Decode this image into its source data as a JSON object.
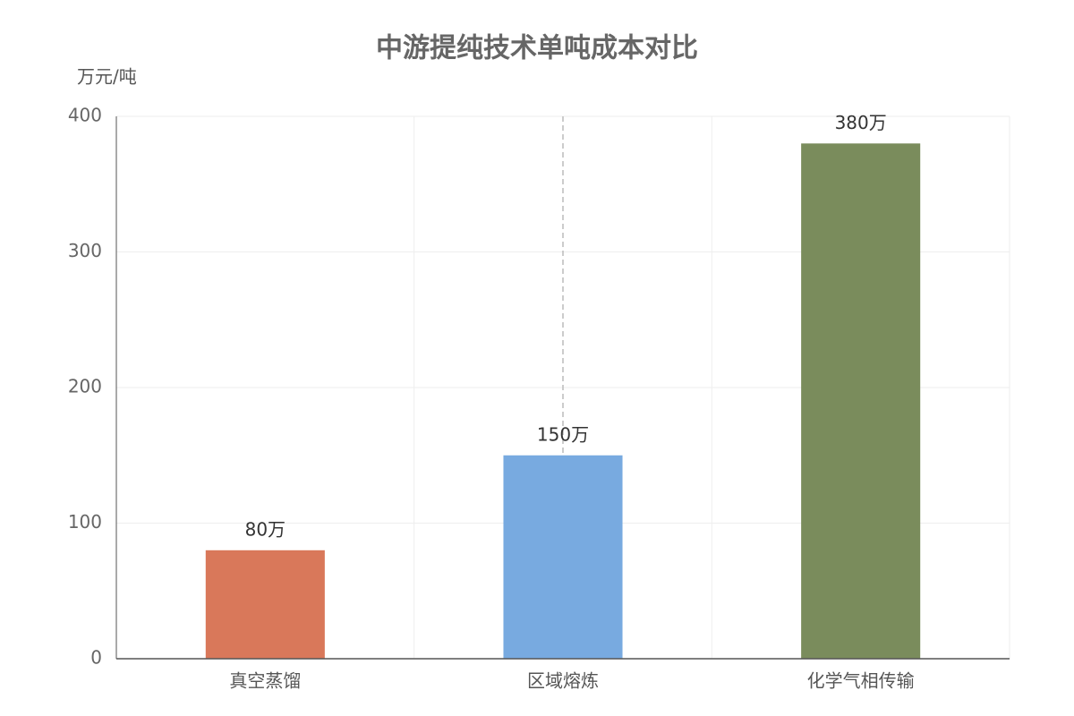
{
  "chart_data": {
    "type": "bar",
    "title": "中游提纯技术单吨成本对比",
    "y_label": "万元/吨",
    "categories": [
      "真空蒸馏",
      "区域熔炼",
      "化学气相传输"
    ],
    "values": [
      80,
      150,
      380
    ],
    "value_labels": [
      "80万",
      "150万",
      "380万"
    ],
    "colors": [
      "#d9785a",
      "#78aae0",
      "#7a8c5c"
    ],
    "ylim": [
      0,
      400
    ],
    "yticks": [
      0,
      100,
      200,
      300,
      400
    ],
    "grid": true
  }
}
